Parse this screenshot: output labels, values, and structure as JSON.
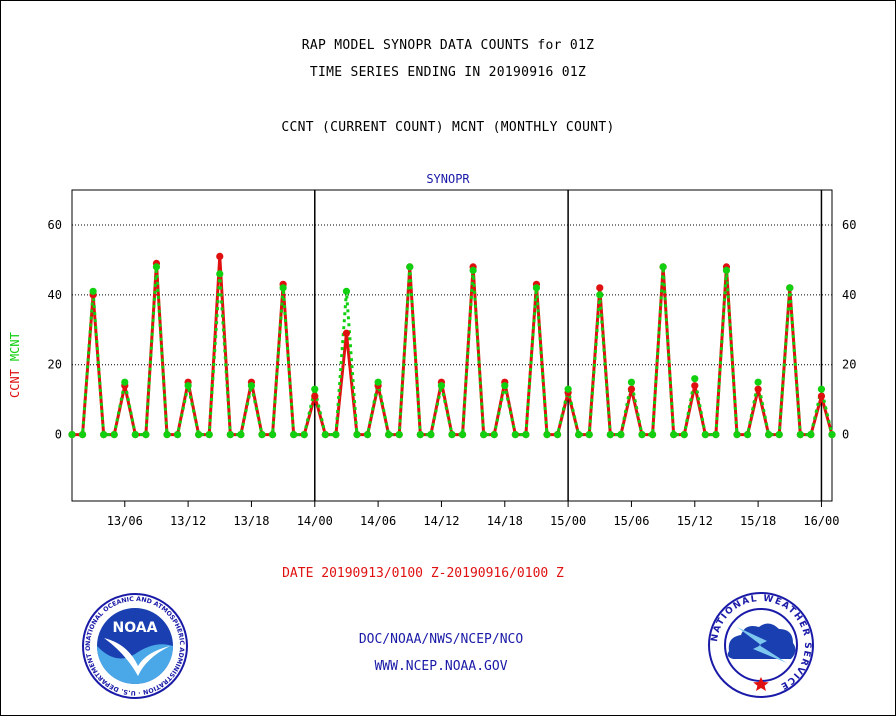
{
  "header": {
    "line1": "RAP MODEL SYNOPR DATA COUNTS for 01Z",
    "line2": "TIME SERIES ENDING IN 20190916 01Z",
    "line3": "CCNT (CURRENT COUNT) MCNT (MONTHLY COUNT)"
  },
  "footer": {
    "date_range": "DATE 20190913/0100 Z-20190916/0100 Z",
    "org": "DOC/NOAA/NWS/NCEP/NCO",
    "url": "WWW.NCEP.NOAA.GOV"
  },
  "logos": {
    "noaa": "NOAA",
    "noaa_ring": "NATIONAL OCEANIC AND ATMOSPHERIC ADMINISTRATION · U.S. DEPARTMENT OF COMMERCE",
    "nws_ring": "NATIONAL WEATHER SERVICE"
  },
  "colors": {
    "ccnt": "#e01010",
    "mcnt": "#10d010",
    "text_blue": "#1a1aa8"
  },
  "chart_data": {
    "type": "line",
    "title": "SYNOPR",
    "ylabel_series": [
      "CCNT",
      "MCNT"
    ],
    "ylim": [
      -19,
      70
    ],
    "yticks": [
      0,
      20,
      40,
      60
    ],
    "xlim": [
      0,
      72
    ],
    "x_tick_labels": [
      "13/06",
      "13/12",
      "13/18",
      "14/00",
      "14/06",
      "14/12",
      "14/18",
      "15/00",
      "15/06",
      "15/12",
      "15/18",
      "16/00"
    ],
    "x_tick_hours": [
      5,
      11,
      17,
      23,
      29,
      35,
      41,
      47,
      53,
      59,
      65,
      71
    ],
    "day_boundaries": [
      23,
      47,
      71
    ],
    "grid": "horizontal dotted at 20, 40, 60",
    "x": [
      0,
      1,
      2,
      3,
      4,
      5,
      6,
      7,
      8,
      9,
      10,
      11,
      12,
      13,
      14,
      15,
      16,
      17,
      18,
      19,
      20,
      21,
      22,
      23,
      24,
      25,
      26,
      27,
      28,
      29,
      30,
      31,
      32,
      33,
      34,
      35,
      36,
      37,
      38,
      39,
      40,
      41,
      42,
      43,
      44,
      45,
      46,
      47,
      48,
      49,
      50,
      51,
      52,
      53,
      54,
      55,
      56,
      57,
      58,
      59,
      60,
      61,
      62,
      63,
      64,
      65,
      66,
      67,
      68,
      69,
      70,
      71,
      72
    ],
    "series": [
      {
        "name": "CCNT",
        "color": "#e01010",
        "values": [
          0,
          0,
          40,
          0,
          0,
          14,
          0,
          0,
          49,
          0,
          0,
          15,
          0,
          0,
          51,
          0,
          0,
          15,
          0,
          0,
          43,
          0,
          0,
          11,
          0,
          0,
          29,
          0,
          0,
          14,
          0,
          0,
          48,
          0,
          0,
          15,
          0,
          0,
          48,
          0,
          0,
          15,
          0,
          0,
          43,
          0,
          0,
          12,
          0,
          0,
          42,
          0,
          0,
          13,
          0,
          0,
          48,
          0,
          0,
          14,
          0,
          0,
          48,
          0,
          0,
          13,
          0,
          0,
          42,
          0,
          0,
          11,
          0
        ]
      },
      {
        "name": "MCNT",
        "color": "#10d010",
        "values": [
          0,
          0,
          41,
          0,
          0,
          15,
          0,
          0,
          48,
          0,
          0,
          14,
          0,
          0,
          46,
          0,
          0,
          14,
          0,
          0,
          42,
          0,
          0,
          13,
          0,
          0,
          41,
          0,
          0,
          15,
          0,
          0,
          48,
          0,
          0,
          14,
          0,
          0,
          47,
          0,
          0,
          14,
          0,
          0,
          42,
          0,
          0,
          13,
          0,
          0,
          40,
          0,
          0,
          15,
          0,
          0,
          48,
          0,
          0,
          16,
          0,
          0,
          47,
          0,
          0,
          15,
          0,
          0,
          42,
          0,
          0,
          13,
          0
        ]
      }
    ]
  }
}
